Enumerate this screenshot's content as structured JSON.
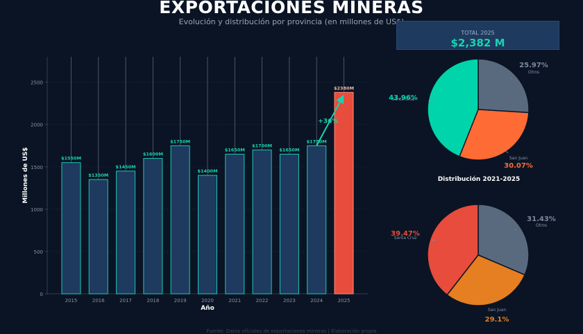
{
  "header": {
    "title": "EXPORTACIONES MINERAS",
    "subtitle": "Evolución y distribución por provincia (en millones de US$)"
  },
  "total_card": {
    "label": "TOTAL 2025",
    "value": "$2,382 M"
  },
  "distribution_title": "Distribución 2021-2025",
  "footer": "Fuente: Datos oficiales de exportaciones mineras | Elaboración propia",
  "colors": {
    "background": "#0b1424",
    "bar_fill": "#1e3a5f",
    "bar_edge": "#19c9b4",
    "highlight": "#e74c3c",
    "accent": "#19d3b0"
  },
  "chart_data": [
    {
      "type": "bar",
      "categories": [
        "2015",
        "2016",
        "2017",
        "2018",
        "2019",
        "2020",
        "2021",
        "2022",
        "2023",
        "2024",
        "2025"
      ],
      "values": [
        1550,
        1350,
        1450,
        1600,
        1750,
        1400,
        1650,
        1700,
        1650,
        1750,
        2380
      ],
      "data_labels": [
        "$1550M",
        "$1350M",
        "$1450M",
        "$1600M",
        "$1750M",
        "$1400M",
        "$1650M",
        "$1700M",
        "$1650M",
        "$1750M",
        "$2380M"
      ],
      "xlabel": "Año",
      "ylabel": "Millones de US$",
      "ylim": [
        0,
        2800
      ],
      "yticks": [
        0,
        500,
        1000,
        1500,
        2000,
        2500
      ],
      "highlight_category": "2025",
      "annotation": {
        "text": "+36%",
        "from": "2024",
        "to": "2025"
      },
      "grid": true
    },
    {
      "type": "pie",
      "labels": [
        "Otros",
        "San Juan",
        "Santa Cruz"
      ],
      "values": [
        25.97,
        30.07,
        43.96
      ],
      "pct_labels": [
        "25.97%",
        "30.07%",
        "43.96%"
      ],
      "colors": [
        "#5a6a7e",
        "#ff6b35",
        "#00d4aa"
      ]
    },
    {
      "type": "pie",
      "labels": [
        "Otros",
        "San Juan",
        "Santa Cruz"
      ],
      "values": [
        31.43,
        29.1,
        39.47
      ],
      "pct_labels": [
        "31.43%",
        "29.1%",
        "39.47%"
      ],
      "colors": [
        "#5a6a7e",
        "#e67e22",
        "#e74c3c"
      ]
    }
  ]
}
